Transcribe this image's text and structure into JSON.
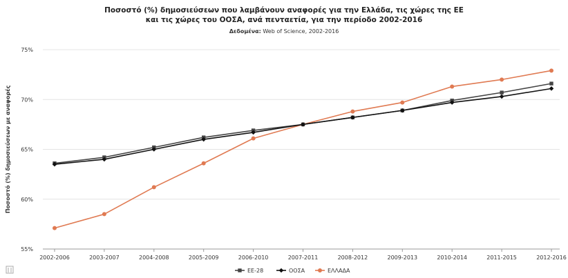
{
  "chart_data": {
    "type": "line",
    "title_line1": "Ποσοστό (%) δημοσιεύσεων που λαμβάνουν αναφορές για την Ελλάδα, τις χώρες της ΕΕ",
    "title_line2": "και τις χώρες του ΟΟΣΑ, ανά πενταετία, για την περίοδο 2002-2016",
    "subtitle_label": "Δεδομένα:",
    "subtitle_value": " Web of Science, 2002-2016",
    "ylabel": "Ποσοστό (%) δημοσιεύσεων με αναφορές",
    "xlabel": "",
    "ylim": [
      55,
      75
    ],
    "yticks": [
      "55%",
      "60%",
      "65%",
      "70%",
      "75%"
    ],
    "categories": [
      "2002-2006",
      "2003-2007",
      "2004-2008",
      "2005-2009",
      "2006-2010",
      "2007-2011",
      "2008-2012",
      "2009-2013",
      "2010-2014",
      "2011-2015",
      "2012-2016"
    ],
    "grid": true,
    "legend_position": "bottom-center",
    "series": [
      {
        "name": "ΕΕ-28",
        "color": "#444444",
        "marker": "square",
        "values": [
          63.6,
          64.2,
          65.2,
          66.2,
          66.9,
          67.5,
          68.2,
          68.9,
          69.9,
          70.7,
          71.6
        ]
      },
      {
        "name": "ΟΟΣΑ",
        "color": "#111111",
        "marker": "diamond",
        "values": [
          63.5,
          64.0,
          65.0,
          66.0,
          66.7,
          67.5,
          68.2,
          68.9,
          69.7,
          70.3,
          71.1
        ]
      },
      {
        "name": "ΕΛΛΑΔΑ",
        "color": "#e07a52",
        "marker": "circle",
        "values": [
          57.1,
          58.5,
          61.2,
          63.6,
          66.1,
          67.5,
          68.8,
          69.7,
          71.3,
          72.0,
          72.9
        ]
      }
    ]
  },
  "icons": {
    "menu": "menu-icon"
  }
}
